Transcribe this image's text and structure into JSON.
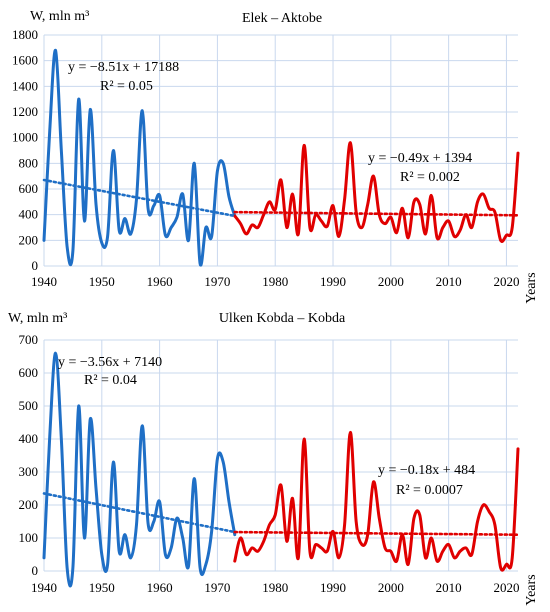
{
  "chart_data": [
    {
      "type": "line",
      "title": "Elek – Aktobe",
      "ylabel": "W, mln m³",
      "xlabel": "Years",
      "ylim": [
        0,
        1800
      ],
      "xlim": [
        1940,
        2022
      ],
      "yticks": [
        0,
        200,
        400,
        600,
        800,
        1000,
        1200,
        1400,
        1600,
        1800
      ],
      "xticks": [
        1940,
        1950,
        1960,
        1970,
        1980,
        1990,
        2000,
        2010,
        2020
      ],
      "series": [
        {
          "color": "#1f6fc6",
          "x": [
            1940,
            1941,
            1942,
            1943,
            1944,
            1945,
            1946,
            1947,
            1948,
            1949,
            1950,
            1951,
            1952,
            1953,
            1954,
            1955,
            1956,
            1957,
            1958,
            1959,
            1960,
            1961,
            1962,
            1963,
            1964,
            1965,
            1966,
            1967,
            1968,
            1969,
            1970,
            1971,
            1972,
            1973
          ],
          "values": [
            200,
            1060,
            1680,
            900,
            150,
            120,
            1300,
            350,
            1220,
            480,
            180,
            230,
            900,
            280,
            370,
            250,
            520,
            1210,
            450,
            470,
            550,
            240,
            300,
            380,
            560,
            200,
            800,
            20,
            300,
            230,
            740,
            800,
            540,
            390
          ]
        },
        {
          "color": "#e00000",
          "x": [
            1973,
            1974,
            1975,
            1976,
            1977,
            1978,
            1979,
            1980,
            1981,
            1982,
            1983,
            1984,
            1985,
            1986,
            1987,
            1988,
            1989,
            1990,
            1991,
            1992,
            1993,
            1994,
            1995,
            1996,
            1997,
            1998,
            1999,
            2000,
            2001,
            2002,
            2003,
            2004,
            2005,
            2006,
            2007,
            2008,
            2009,
            2010,
            2011,
            2012,
            2013,
            2014,
            2015,
            2016,
            2017,
            2018,
            2019,
            2020,
            2021,
            2022
          ],
          "values": [
            390,
            330,
            250,
            320,
            300,
            400,
            500,
            440,
            670,
            300,
            560,
            250,
            940,
            300,
            400,
            350,
            310,
            470,
            230,
            520,
            960,
            420,
            300,
            480,
            700,
            400,
            330,
            380,
            260,
            450,
            220,
            500,
            480,
            250,
            550,
            220,
            300,
            350,
            230,
            280,
            400,
            300,
            500,
            560,
            450,
            420,
            200,
            240,
            300,
            880
          ]
        }
      ],
      "trendlines": [
        {
          "equation": "y = −8.51x + 17188",
          "r2": "R² = 0.05",
          "color": "#1f6fc6",
          "x": [
            1940,
            1973
          ],
          "values": [
            670,
            390
          ]
        },
        {
          "equation": "y = −0.49x + 1394",
          "r2": "R² = 0.002",
          "color": "#e00000",
          "x": [
            1973,
            2022
          ],
          "values": [
            420,
            395
          ]
        }
      ]
    },
    {
      "type": "line",
      "title": "Ulken Kobda – Kobda",
      "ylabel": "W, mln m³",
      "xlabel": "Years",
      "ylim": [
        0,
        700
      ],
      "xlim": [
        1940,
        2022
      ],
      "yticks": [
        0,
        100,
        200,
        300,
        400,
        500,
        600,
        700
      ],
      "xticks": [
        1940,
        1950,
        1960,
        1970,
        1980,
        1990,
        2000,
        2010,
        2020
      ],
      "series": [
        {
          "color": "#1f6fc6",
          "x": [
            1940,
            1941,
            1942,
            1943,
            1944,
            1945,
            1946,
            1947,
            1948,
            1949,
            1950,
            1951,
            1952,
            1953,
            1954,
            1955,
            1956,
            1957,
            1958,
            1959,
            1960,
            1961,
            1962,
            1963,
            1964,
            1965,
            1966,
            1967,
            1968,
            1969,
            1970,
            1971,
            1972,
            1973
          ],
          "values": [
            40,
            410,
            660,
            400,
            10,
            10,
            500,
            100,
            460,
            250,
            50,
            20,
            330,
            60,
            110,
            40,
            140,
            440,
            145,
            150,
            210,
            50,
            70,
            160,
            100,
            15,
            280,
            10,
            20,
            120,
            340,
            330,
            210,
            110
          ]
        },
        {
          "color": "#e00000",
          "x": [
            1973,
            1974,
            1975,
            1976,
            1977,
            1978,
            1979,
            1980,
            1981,
            1982,
            1983,
            1984,
            1985,
            1986,
            1987,
            1988,
            1989,
            1990,
            1991,
            1992,
            1993,
            1994,
            1995,
            1996,
            1997,
            1998,
            1999,
            2000,
            2001,
            2002,
            2003,
            2004,
            2005,
            2006,
            2007,
            2008,
            2009,
            2010,
            2011,
            2012,
            2013,
            2014,
            2015,
            2016,
            2017,
            2018,
            2019,
            2020,
            2021,
            2022
          ],
          "values": [
            30,
            100,
            50,
            70,
            60,
            90,
            140,
            170,
            260,
            90,
            220,
            40,
            400,
            60,
            80,
            70,
            60,
            120,
            40,
            140,
            420,
            150,
            80,
            110,
            270,
            160,
            70,
            60,
            30,
            110,
            20,
            160,
            170,
            40,
            100,
            30,
            60,
            80,
            40,
            60,
            70,
            50,
            150,
            200,
            180,
            140,
            10,
            20,
            40,
            370
          ]
        }
      ],
      "trendlines": [
        {
          "equation": "y = −3.56x + 7140",
          "r2": "R² = 0.04",
          "color": "#1f6fc6",
          "x": [
            1940,
            1973
          ],
          "values": [
            235,
            118
          ]
        },
        {
          "equation": "y = −0.18x + 484",
          "r2": "R² = 0.0007",
          "color": "#e00000",
          "x": [
            1973,
            2022
          ],
          "values": [
            118,
            110
          ]
        }
      ]
    }
  ]
}
